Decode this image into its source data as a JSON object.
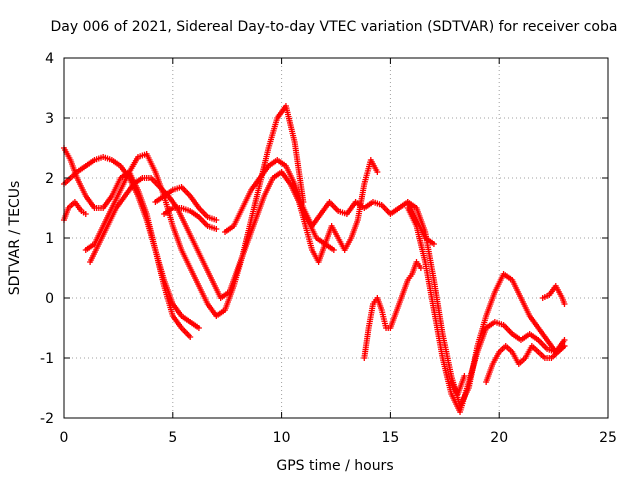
{
  "chart_data": {
    "type": "scatter",
    "title": "Day 006 of 2021, Sidereal Day-to-day VTEC variation (SDTVAR) for receiver coba",
    "xlabel": "GPS time / hours",
    "ylabel": "SDTVAR / TECUs",
    "xlim": [
      0,
      25
    ],
    "ylim": [
      -2,
      4
    ],
    "xticks": [
      0,
      5,
      10,
      15,
      20,
      25
    ],
    "yticks": [
      -2,
      -1,
      0,
      1,
      2,
      3,
      4
    ],
    "grid": true,
    "marker": "plus",
    "color": "#ff0000",
    "series": [
      {
        "x": [
          0.0,
          0.3,
          0.6,
          1.0,
          1.4,
          1.8,
          2.2,
          2.6,
          3.0,
          3.4,
          3.8,
          4.2,
          4.6,
          5.0,
          5.4,
          5.8
        ],
        "values": [
          2.5,
          2.3,
          2.0,
          1.7,
          1.5,
          1.5,
          1.7,
          2.0,
          2.1,
          1.8,
          1.4,
          0.8,
          0.2,
          -0.3,
          -0.5,
          -0.65
        ]
      },
      {
        "x": [
          0.0,
          0.3,
          0.6,
          1.0,
          1.4,
          1.8,
          2.2,
          2.6,
          3.0,
          3.4,
          3.8,
          4.2,
          4.6,
          5.0,
          5.4,
          5.8,
          6.2
        ],
        "values": [
          1.9,
          2.0,
          2.1,
          2.2,
          2.3,
          2.35,
          2.3,
          2.2,
          2.0,
          1.7,
          1.3,
          0.8,
          0.3,
          -0.1,
          -0.3,
          -0.4,
          -0.5
        ]
      },
      {
        "x": [
          0.0,
          0.2,
          0.5,
          0.8,
          1.0
        ],
        "values": [
          1.3,
          1.5,
          1.6,
          1.45,
          1.4
        ]
      },
      {
        "x": [
          1.0,
          1.4,
          1.8,
          2.2,
          2.6,
          3.0,
          3.4,
          3.8,
          4.2,
          4.6,
          5.0,
          5.4,
          5.8,
          6.2,
          6.6,
          7.0,
          7.4,
          7.8,
          8.2,
          8.6,
          9.0,
          9.4,
          9.8,
          10.2,
          10.6,
          11.0
        ],
        "values": [
          0.8,
          0.9,
          1.2,
          1.5,
          1.8,
          2.1,
          2.35,
          2.4,
          2.1,
          1.7,
          1.2,
          0.8,
          0.5,
          0.2,
          -0.1,
          -0.3,
          -0.2,
          0.2,
          0.7,
          1.3,
          1.9,
          2.5,
          3.0,
          3.2,
          2.6,
          1.6
        ]
      },
      {
        "x": [
          1.2,
          1.6,
          2.0,
          2.4,
          2.8,
          3.2,
          3.6,
          4.0,
          4.4,
          4.8,
          5.2,
          5.6,
          6.0,
          6.4,
          6.8,
          7.2,
          7.6,
          8.0,
          8.4,
          8.8,
          9.2,
          9.6,
          10.0,
          10.4,
          10.8,
          11.2,
          11.6,
          12.0,
          12.4
        ],
        "values": [
          0.6,
          0.9,
          1.2,
          1.5,
          1.7,
          1.9,
          2.0,
          2.0,
          1.85,
          1.7,
          1.5,
          1.2,
          0.9,
          0.6,
          0.3,
          0.0,
          0.1,
          0.5,
          0.9,
          1.3,
          1.7,
          2.0,
          2.1,
          1.9,
          1.6,
          1.3,
          1.0,
          0.9,
          0.8
        ]
      },
      {
        "x": [
          4.2,
          4.6,
          5.0,
          5.4,
          5.8,
          6.2,
          6.6,
          7.0
        ],
        "values": [
          1.6,
          1.7,
          1.8,
          1.85,
          1.7,
          1.5,
          1.35,
          1.3
        ]
      },
      {
        "x": [
          4.6,
          5.0,
          5.4,
          5.8,
          6.2,
          6.6,
          7.0
        ],
        "values": [
          1.4,
          1.5,
          1.5,
          1.45,
          1.35,
          1.2,
          1.15
        ]
      },
      {
        "x": [
          7.4,
          7.8,
          8.2,
          8.6,
          9.0,
          9.4,
          9.8,
          10.2,
          10.6,
          11.0,
          11.4,
          11.8,
          12.2,
          12.6,
          13.0,
          13.4,
          13.8,
          14.2,
          14.6,
          15.0,
          15.4,
          15.8,
          16.2,
          16.6,
          17.0
        ],
        "values": [
          1.1,
          1.2,
          1.5,
          1.8,
          2.0,
          2.2,
          2.3,
          2.2,
          1.9,
          1.5,
          1.2,
          1.4,
          1.6,
          1.45,
          1.4,
          1.6,
          1.5,
          1.6,
          1.55,
          1.4,
          1.5,
          1.6,
          1.3,
          1.0,
          0.9
        ]
      },
      {
        "x": [
          10.5,
          10.8,
          11.1,
          11.4,
          11.7,
          12.0,
          12.3,
          12.6,
          12.9,
          13.2,
          13.5,
          13.8,
          14.1,
          14.4
        ],
        "values": [
          1.9,
          1.6,
          1.2,
          0.8,
          0.6,
          0.9,
          1.2,
          1.0,
          0.8,
          1.0,
          1.3,
          1.9,
          2.3,
          2.1
        ]
      },
      {
        "x": [
          13.8,
          14.0,
          14.2,
          14.4,
          14.6,
          14.8,
          15.0,
          15.2,
          15.4,
          15.6,
          15.8,
          16.0,
          16.2,
          16.4
        ],
        "values": [
          -1.0,
          -0.5,
          -0.1,
          0.0,
          -0.2,
          -0.5,
          -0.5,
          -0.3,
          -0.1,
          0.1,
          0.3,
          0.4,
          0.6,
          0.5
        ]
      },
      {
        "x": [
          15.8,
          16.2,
          16.6,
          17.0,
          17.4,
          17.8,
          18.2,
          18.6,
          19.0,
          19.4,
          19.8,
          20.2,
          20.6,
          21.0,
          21.4,
          21.8,
          22.2,
          22.6,
          23.0
        ],
        "values": [
          1.6,
          1.5,
          1.1,
          0.3,
          -0.6,
          -1.3,
          -1.8,
          -1.5,
          -0.8,
          -0.3,
          0.1,
          0.4,
          0.3,
          0.0,
          -0.3,
          -0.5,
          -0.7,
          -0.9,
          -0.8
        ]
      },
      {
        "x": [
          15.8,
          16.2,
          16.6,
          17.0,
          17.4,
          17.8,
          18.2,
          18.6,
          19.0,
          19.4,
          19.8,
          20.2,
          20.6,
          21.0,
          21.4,
          21.8,
          22.2,
          22.6,
          23.0
        ],
        "values": [
          1.5,
          1.2,
          0.6,
          -0.2,
          -1.0,
          -1.6,
          -1.9,
          -1.4,
          -0.9,
          -0.5,
          -0.4,
          -0.45,
          -0.6,
          -0.7,
          -0.6,
          -0.7,
          -0.85,
          -0.9,
          -0.7
        ]
      },
      {
        "x": [
          19.4,
          19.7,
          20.0,
          20.3,
          20.6,
          20.9,
          21.2,
          21.5,
          21.8,
          22.1,
          22.4,
          22.7,
          23.0
        ],
        "values": [
          -1.4,
          -1.1,
          -0.9,
          -0.8,
          -0.9,
          -1.1,
          -1.0,
          -0.8,
          -0.9,
          -1.0,
          -1.0,
          -0.9,
          -0.8
        ]
      },
      {
        "x": [
          17.8,
          18.1,
          18.4
        ],
        "values": [
          -1.4,
          -1.6,
          -1.3
        ]
      },
      {
        "x": [
          22.0,
          22.3,
          22.6,
          22.9,
          23.0
        ],
        "values": [
          0.0,
          0.05,
          0.2,
          0.0,
          -0.1
        ]
      }
    ]
  }
}
